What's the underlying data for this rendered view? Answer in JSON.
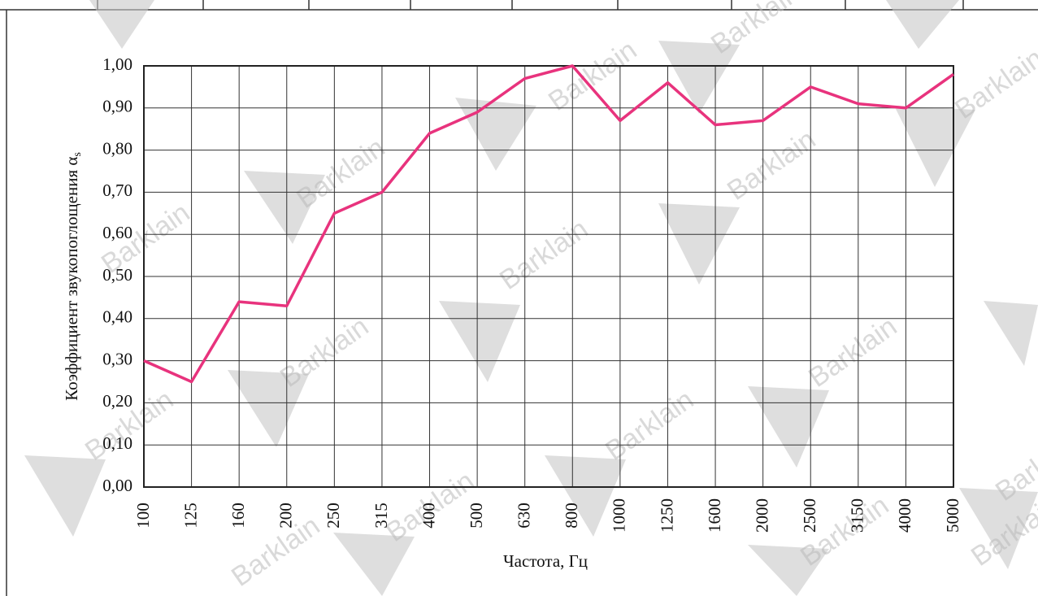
{
  "chart_data": {
    "type": "line",
    "y_label": "Коэффициент звукопоглощения α",
    "y_label_subscript": "s",
    "x_label": "Частота, Гц",
    "watermark": "Barklain",
    "categories": [
      "100",
      "125",
      "160",
      "200",
      "250",
      "315",
      "400",
      "500",
      "630",
      "800",
      "1000",
      "1250",
      "1600",
      "2000",
      "2500",
      "3150",
      "4000",
      "5000"
    ],
    "values": [
      0.3,
      0.25,
      0.44,
      0.43,
      0.65,
      0.7,
      0.84,
      0.89,
      0.97,
      1.0,
      0.87,
      0.96,
      0.86,
      0.87,
      0.95,
      0.91,
      0.9,
      0.98
    ],
    "color": "#e8337d",
    "ylim": [
      0,
      1
    ],
    "yticks": [
      {
        "value": 0,
        "label": "0,00"
      },
      {
        "value": 0.1,
        "label": "0,10"
      },
      {
        "value": 0.2,
        "label": "0,20"
      },
      {
        "value": 0.3,
        "label": "0,30"
      },
      {
        "value": 0.4,
        "label": "0,40"
      },
      {
        "value": 0.5,
        "label": "0,50"
      },
      {
        "value": 0.6,
        "label": "0,60"
      },
      {
        "value": 0.7,
        "label": "0,70"
      },
      {
        "value": 0.8,
        "label": "0,80"
      },
      {
        "value": 0.9,
        "label": "0,90"
      },
      {
        "value": 1,
        "label": "1,00"
      }
    ],
    "grid": true
  }
}
